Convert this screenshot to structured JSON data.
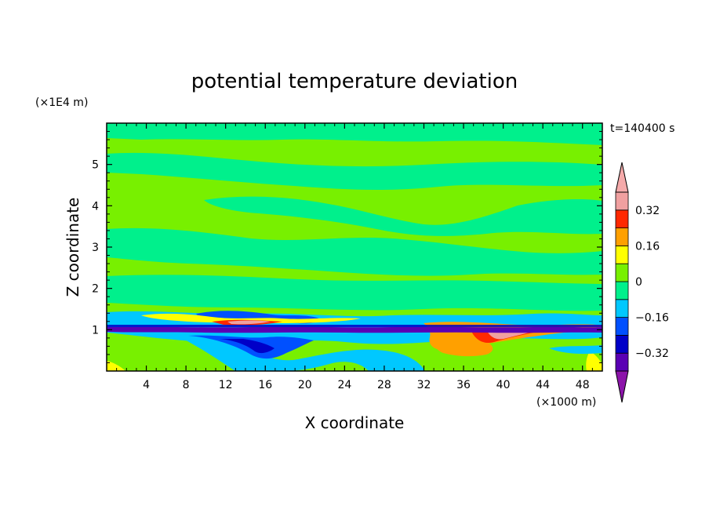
{
  "chart_data": {
    "type": "heatmap",
    "title": "potential temperature deviation",
    "xlabel": "X coordinate",
    "ylabel": "Z coordinate",
    "x_unit_label": "(×1000 m)",
    "y_unit_label": "(×1E4 m)",
    "time_label": "t=140400 s",
    "xlim": [
      0,
      50
    ],
    "ylim": [
      0,
      6
    ],
    "xticks": [
      4,
      8,
      12,
      16,
      20,
      24,
      28,
      32,
      36,
      40,
      44,
      48
    ],
    "yticks": [
      1,
      2,
      3,
      4,
      5
    ],
    "colorbar": {
      "levels": [
        -0.4,
        -0.32,
        -0.24,
        -0.16,
        -0.08,
        0,
        0.08,
        0.16,
        0.24,
        0.32,
        0.4
      ],
      "labels": [
        "0.32",
        "0.16",
        "0",
        "−0.16",
        "−0.32"
      ],
      "label_values": [
        0.32,
        0.16,
        0,
        -0.16,
        -0.32
      ],
      "colors_low_to_high": [
        "#5a00b4",
        "#0000c8",
        "#0050ff",
        "#00c8ff",
        "#00f08c",
        "#78f000",
        "#ffff00",
        "#ffa000",
        "#ff2800",
        "#f0a0a0"
      ],
      "under_color": "#8c14aa",
      "over_color": "#f5aaaa"
    }
  }
}
